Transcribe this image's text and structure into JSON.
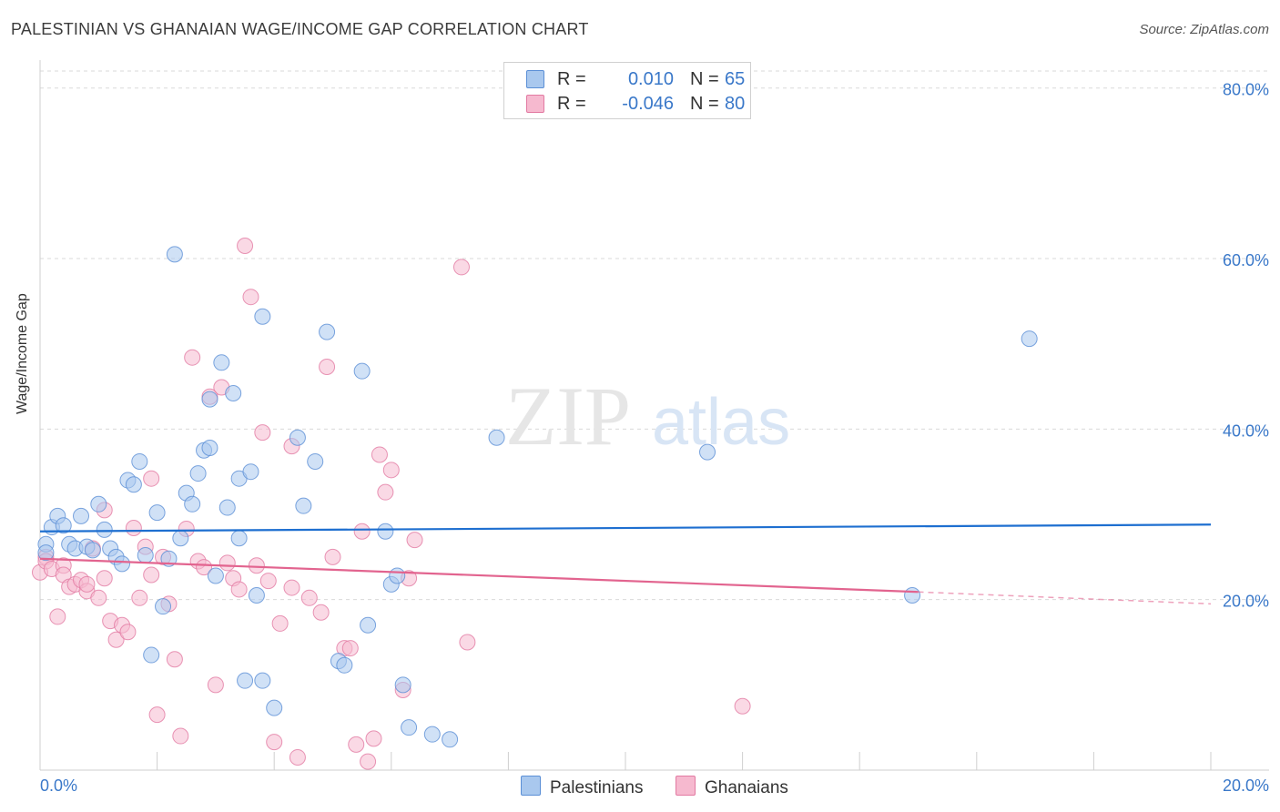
{
  "title": "PALESTINIAN VS GHANAIAN WAGE/INCOME GAP CORRELATION CHART",
  "source": "Source: ZipAtlas.com",
  "watermark": {
    "zip": "ZIP",
    "atlas": "atlas"
  },
  "legend": {
    "rows": [
      {
        "r_label": "R =",
        "r_value": "0.010",
        "n_label": "N =",
        "n_value": "65"
      },
      {
        "r_label": "R =",
        "r_value": "-0.046",
        "n_label": "N =",
        "n_value": "80"
      }
    ]
  },
  "bottom_legend": {
    "series1": "Palestinians",
    "series2": "Ghanaians"
  },
  "colors": {
    "blue_fill": "#a9c8ee",
    "blue_stroke": "#5b8fd6",
    "blue_line": "#1e6fd0",
    "pink_fill": "#f6b9cf",
    "pink_stroke": "#e27aa2",
    "pink_line": "#e2648f",
    "grid": "#d9d9d9",
    "tick_text": "#3a78c9"
  },
  "chart_data": {
    "type": "scatter",
    "title": "PALESTINIAN VS GHANAIAN WAGE/INCOME GAP CORRELATION CHART",
    "xlabel": "",
    "ylabel": "Wage/Income Gap",
    "xlim": [
      0,
      20
    ],
    "ylim": [
      0,
      82
    ],
    "x_tick_labels": [
      "0.0%",
      "20.0%"
    ],
    "y_ticks": [
      20,
      40,
      60,
      80
    ],
    "y_tick_labels": [
      "20.0%",
      "40.0%",
      "60.0%",
      "80.0%"
    ],
    "grid": true,
    "legend_position": "top-center",
    "series": [
      {
        "name": "Palestinians",
        "r": 0.01,
        "n": 65,
        "trend": {
          "x": [
            0,
            20
          ],
          "y": [
            28.0,
            28.8
          ]
        },
        "points": [
          [
            0.1,
            26.5
          ],
          [
            0.1,
            25.5
          ],
          [
            0.2,
            28.5
          ],
          [
            0.3,
            29.8
          ],
          [
            0.4,
            28.7
          ],
          [
            0.5,
            26.5
          ],
          [
            0.6,
            26.0
          ],
          [
            0.7,
            29.8
          ],
          [
            0.8,
            26.2
          ],
          [
            0.9,
            25.8
          ],
          [
            1.0,
            31.2
          ],
          [
            1.1,
            28.2
          ],
          [
            1.2,
            26.0
          ],
          [
            1.3,
            25.0
          ],
          [
            1.4,
            24.2
          ],
          [
            1.5,
            34.0
          ],
          [
            1.6,
            33.5
          ],
          [
            1.7,
            36.2
          ],
          [
            1.8,
            25.2
          ],
          [
            1.9,
            13.5
          ],
          [
            2.0,
            30.2
          ],
          [
            2.1,
            19.2
          ],
          [
            2.2,
            24.8
          ],
          [
            2.3,
            60.5
          ],
          [
            2.4,
            27.2
          ],
          [
            2.5,
            32.5
          ],
          [
            2.6,
            31.2
          ],
          [
            2.7,
            34.8
          ],
          [
            2.8,
            37.5
          ],
          [
            2.9,
            37.8
          ],
          [
            2.9,
            43.5
          ],
          [
            3.0,
            22.8
          ],
          [
            3.1,
            47.8
          ],
          [
            3.2,
            30.8
          ],
          [
            3.3,
            44.2
          ],
          [
            3.4,
            34.2
          ],
          [
            3.4,
            27.2
          ],
          [
            3.5,
            10.5
          ],
          [
            3.6,
            35.0
          ],
          [
            3.7,
            20.5
          ],
          [
            3.8,
            10.5
          ],
          [
            3.8,
            53.2
          ],
          [
            4.0,
            7.3
          ],
          [
            4.4,
            39.0
          ],
          [
            4.5,
            31.0
          ],
          [
            4.7,
            36.2
          ],
          [
            4.9,
            51.4
          ],
          [
            5.1,
            12.8
          ],
          [
            5.2,
            12.3
          ],
          [
            5.5,
            46.8
          ],
          [
            5.6,
            17.0
          ],
          [
            5.9,
            28.0
          ],
          [
            6.0,
            21.8
          ],
          [
            6.1,
            22.8
          ],
          [
            6.2,
            10.0
          ],
          [
            6.3,
            5.0
          ],
          [
            6.7,
            4.2
          ],
          [
            7.0,
            3.6
          ],
          [
            7.8,
            39.0
          ],
          [
            11.4,
            37.3
          ],
          [
            14.9,
            20.5
          ],
          [
            16.9,
            50.6
          ]
        ]
      },
      {
        "name": "Ghanaians",
        "r": -0.046,
        "n": 80,
        "trend": {
          "x": [
            0,
            15
          ],
          "y": [
            24.8,
            20.9
          ],
          "dashed_to": {
            "x": 20,
            "y": 19.5
          }
        },
        "points": [
          [
            0.0,
            23.2
          ],
          [
            0.1,
            25.0
          ],
          [
            0.1,
            24.5
          ],
          [
            0.2,
            23.6
          ],
          [
            0.3,
            18.0
          ],
          [
            0.4,
            24.0
          ],
          [
            0.4,
            22.9
          ],
          [
            0.5,
            21.5
          ],
          [
            0.6,
            21.8
          ],
          [
            0.7,
            22.3
          ],
          [
            0.8,
            21.0
          ],
          [
            0.8,
            21.8
          ],
          [
            0.9,
            26.0
          ],
          [
            1.0,
            20.2
          ],
          [
            1.1,
            30.5
          ],
          [
            1.1,
            22.5
          ],
          [
            1.2,
            17.5
          ],
          [
            1.3,
            15.3
          ],
          [
            1.4,
            17.0
          ],
          [
            1.5,
            16.2
          ],
          [
            1.6,
            28.4
          ],
          [
            1.7,
            20.2
          ],
          [
            1.8,
            26.2
          ],
          [
            1.9,
            34.2
          ],
          [
            1.9,
            22.9
          ],
          [
            2.0,
            6.5
          ],
          [
            2.1,
            25.0
          ],
          [
            2.2,
            19.5
          ],
          [
            2.3,
            13.0
          ],
          [
            2.4,
            4.0
          ],
          [
            2.5,
            28.3
          ],
          [
            2.6,
            48.4
          ],
          [
            2.7,
            24.5
          ],
          [
            2.8,
            23.8
          ],
          [
            2.9,
            43.8
          ],
          [
            3.0,
            10.0
          ],
          [
            3.1,
            44.9
          ],
          [
            3.2,
            24.3
          ],
          [
            3.3,
            22.5
          ],
          [
            3.4,
            21.2
          ],
          [
            3.5,
            61.5
          ],
          [
            3.6,
            55.5
          ],
          [
            3.7,
            24.0
          ],
          [
            3.8,
            39.6
          ],
          [
            3.9,
            22.2
          ],
          [
            4.0,
            3.3
          ],
          [
            4.1,
            17.2
          ],
          [
            4.3,
            38.0
          ],
          [
            4.3,
            21.4
          ],
          [
            4.4,
            1.5
          ],
          [
            4.6,
            20.2
          ],
          [
            4.8,
            18.5
          ],
          [
            4.9,
            47.3
          ],
          [
            5.0,
            25.0
          ],
          [
            5.2,
            14.3
          ],
          [
            5.3,
            14.3
          ],
          [
            5.4,
            3.0
          ],
          [
            5.5,
            28.0
          ],
          [
            5.6,
            1.0
          ],
          [
            5.7,
            3.7
          ],
          [
            5.8,
            37.0
          ],
          [
            5.9,
            32.6
          ],
          [
            6.0,
            35.2
          ],
          [
            6.2,
            9.4
          ],
          [
            6.3,
            22.5
          ],
          [
            6.4,
            27.0
          ],
          [
            7.2,
            59.0
          ],
          [
            7.3,
            15.0
          ],
          [
            12.0,
            7.5
          ]
        ]
      }
    ]
  }
}
